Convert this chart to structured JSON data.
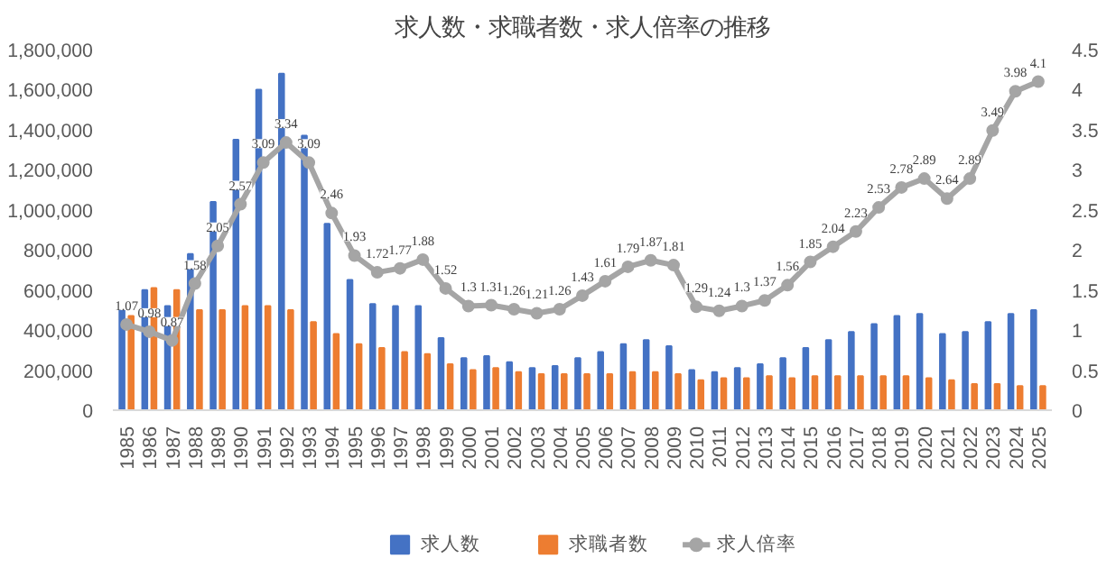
{
  "chart_data": {
    "type": "bar",
    "title": "求人数・求職者数・求人倍率の推移",
    "categories": [
      "1985",
      "1986",
      "1987",
      "1988",
      "1989",
      "1990",
      "1991",
      "1992",
      "1993",
      "1994",
      "1995",
      "1996",
      "1997",
      "1998",
      "1999",
      "2000",
      "2001",
      "2002",
      "2003",
      "2004",
      "2005",
      "2006",
      "2007",
      "2008",
      "2009",
      "2010",
      "2011",
      "2012",
      "2013",
      "2014",
      "2015",
      "2016",
      "2017",
      "2018",
      "2019",
      "2020",
      "2021",
      "2022",
      "2023",
      "2024",
      "2025"
    ],
    "series": [
      {
        "name": "求人数",
        "color": "#4472c4",
        "values": [
          500000,
          600000,
          520000,
          780000,
          1040000,
          1350000,
          1600000,
          1680000,
          1370000,
          930000,
          650000,
          530000,
          520000,
          520000,
          360000,
          260000,
          270000,
          240000,
          210000,
          220000,
          260000,
          290000,
          330000,
          350000,
          320000,
          200000,
          190000,
          210000,
          230000,
          260000,
          310000,
          350000,
          390000,
          430000,
          470000,
          480000,
          380000,
          390000,
          440000,
          480000,
          500000
        ]
      },
      {
        "name": "求職者数",
        "color": "#ed7d31",
        "values": [
          470000,
          610000,
          600000,
          500000,
          500000,
          520000,
          520000,
          500000,
          440000,
          380000,
          330000,
          310000,
          290000,
          280000,
          230000,
          200000,
          210000,
          190000,
          180000,
          180000,
          180000,
          180000,
          190000,
          190000,
          180000,
          150000,
          160000,
          160000,
          170000,
          160000,
          170000,
          170000,
          170000,
          170000,
          170000,
          160000,
          150000,
          130000,
          130000,
          120000,
          120000
        ]
      },
      {
        "name": "求人倍率",
        "type": "line",
        "axis": "y2",
        "color": "#a5a5a5",
        "marker": "circle",
        "values": [
          1.07,
          0.98,
          0.87,
          1.58,
          2.05,
          2.57,
          3.09,
          3.34,
          3.09,
          2.46,
          1.93,
          1.72,
          1.77,
          1.88,
          1.52,
          1.3,
          1.31,
          1.26,
          1.21,
          1.26,
          1.43,
          1.61,
          1.79,
          1.87,
          1.81,
          1.29,
          1.24,
          1.3,
          1.37,
          1.56,
          1.85,
          2.04,
          2.23,
          2.53,
          2.78,
          2.89,
          2.64,
          2.89,
          3.49,
          3.98,
          4.1
        ],
        "value_labels": [
          "1.07",
          "0.98",
          "0.87",
          "1.58",
          "2.05",
          "2.57",
          "3.09",
          "3.34",
          "3.09",
          "2.46",
          "1.93",
          "1.72",
          "1.77",
          "1.88",
          "1.52",
          "1.3",
          "1.31",
          "1.26",
          "1.21",
          "1.26",
          "1.43",
          "1.61",
          "1.79",
          "1.87",
          "1.81",
          "1.29",
          "1.24",
          "1.3",
          "1.37",
          "1.56",
          "1.85",
          "2.04",
          "2.23",
          "2.53",
          "2.78",
          "2.89",
          "2.64",
          "2.89",
          "3.49",
          "3.98",
          "4.1"
        ]
      }
    ],
    "ylim": [
      0,
      1800000
    ],
    "yticks": [
      0,
      {
        "value": 200000,
        "label": "200,000"
      },
      {
        "value": 400000,
        "label": "400,000"
      },
      {
        "value": 600000,
        "label": "600,000"
      },
      {
        "value": 800000,
        "label": "800,000"
      },
      {
        "value": 1000000,
        "label": "1,000,000"
      },
      {
        "value": 1200000,
        "label": "1,200,000"
      },
      {
        "value": 1400000,
        "label": "1,400,000"
      },
      {
        "value": 1600000,
        "label": "1,600,000"
      },
      {
        "value": 1800000,
        "label": "1,800,000"
      }
    ],
    "y2lim": [
      0,
      4.5
    ],
    "y2ticks": [
      0,
      0.5,
      1,
      1.5,
      2,
      2.5,
      3,
      3.5,
      4,
      4.5
    ],
    "grid": false,
    "legend": "bottom"
  }
}
